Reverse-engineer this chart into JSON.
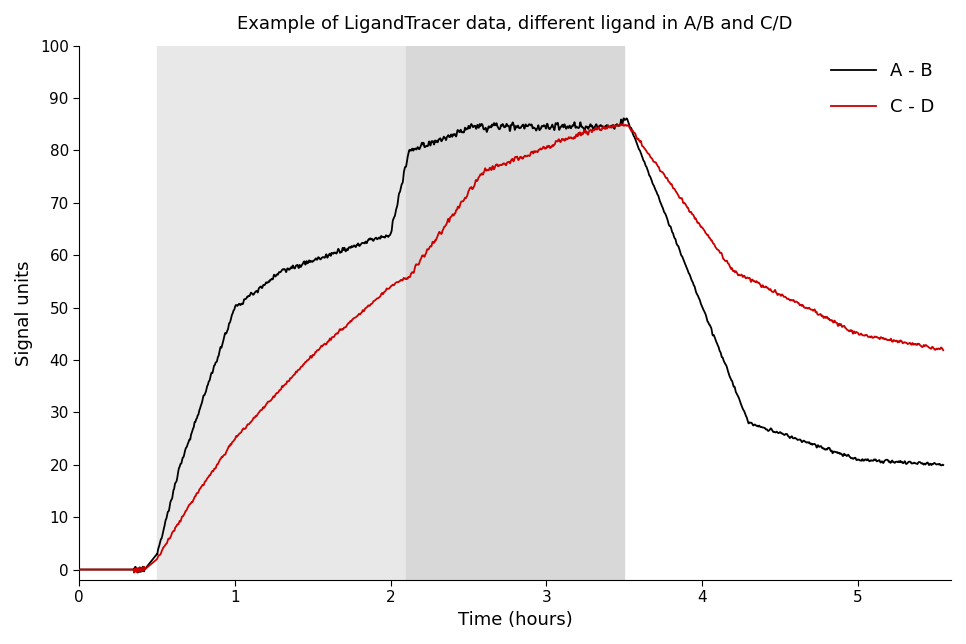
{
  "title": "Example of LigandTracer data, different ligand in A/B and C/D",
  "xlabel": "Time (hours)",
  "ylabel": "Signal units",
  "xlim": [
    0,
    5.6
  ],
  "ylim": [
    -2,
    100
  ],
  "yticks": [
    0,
    10,
    20,
    30,
    40,
    50,
    60,
    70,
    80,
    90,
    100
  ],
  "xticks": [
    0,
    1,
    2,
    3,
    4,
    5
  ],
  "bg_region1": [
    0.5,
    2.1
  ],
  "bg_region2": [
    2.1,
    3.5
  ],
  "bg_color1": "#e8e8e8",
  "bg_color2": "#d8d8d8",
  "line_black_label": "A - B",
  "line_red_label": "C - D",
  "noise_seed": 42,
  "n_points": 3000
}
